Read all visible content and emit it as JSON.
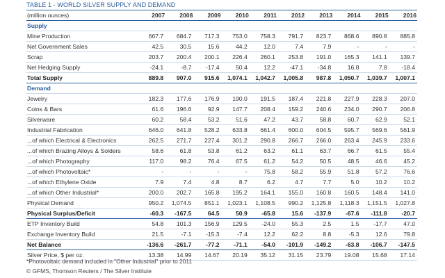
{
  "title": "TABLE 1 - WORLD SILVER SUPPLY AND DEMAND",
  "header": [
    "(million ounces)",
    "2007",
    "2008",
    "2009",
    "2010",
    "2011",
    "2012",
    "2013",
    "2014",
    "2015",
    "2016"
  ],
  "rows": [
    {
      "heading": "Supply"
    },
    {
      "label": "Mine Production",
      "values": [
        "667.7",
        "684.7",
        "717.3",
        "753.0",
        "758.3",
        "791.7",
        "823.7",
        "868.6",
        "890.8",
        "885.8"
      ]
    },
    {
      "label": "Net Government Sales",
      "values": [
        "42.5",
        "30.5",
        "15.6",
        "44.2",
        "12.0",
        "7.4",
        "7.9",
        "-",
        "-",
        "-"
      ]
    },
    {
      "label": "Scrap",
      "values": [
        "203.7",
        "200.4",
        "200.1",
        "226.4",
        "260.1",
        "253.8",
        "191.0",
        "165.3",
        "141.1",
        "139.7"
      ]
    },
    {
      "label": "Net Hedging Supply",
      "values": [
        "-24.1",
        "-8.7",
        "-17.4",
        "50.4",
        "12.2",
        "-47.1",
        "-34.8",
        "16.8",
        "7.8",
        "-18.4"
      ]
    },
    {
      "label": "Total Supply",
      "bold": true,
      "values": [
        "889.8",
        "907.0",
        "915.6",
        "1,074.1",
        "1,042.7",
        "1,005.8",
        "987.8",
        "1,050.7",
        "1,039.7",
        "1,007.1"
      ]
    },
    {
      "heading": "Demand"
    },
    {
      "label": "Jewelry",
      "values": [
        "182.3",
        "177.6",
        "176.9",
        "190.0",
        "191.5",
        "187.4",
        "221.8",
        "227.9",
        "228.3",
        "207.0"
      ]
    },
    {
      "label": "Coins & Bars",
      "values": [
        "61.6",
        "196.6",
        "92.9",
        "147.7",
        "208.4",
        "159.2",
        "240.6",
        "234.0",
        "290.7",
        "206.8"
      ]
    },
    {
      "label": "Silverware",
      "values": [
        "60.2",
        "58.4",
        "53.2",
        "51.6",
        "47.2",
        "43.7",
        "58.8",
        "60.7",
        "62.9",
        "52.1"
      ]
    },
    {
      "label": "Industrial Fabrication",
      "values": [
        "646.0",
        "641.8",
        "528.2",
        "633.8",
        "661.4",
        "600.0",
        "604.5",
        "595.7",
        "569.6",
        "561.9"
      ]
    },
    {
      "label": "...of which Electrical & Electronics",
      "values": [
        "262.5",
        "271.7",
        "227.4",
        "301.2",
        "290.8",
        "266.7",
        "266.0",
        "263.4",
        "245.9",
        "233.6"
      ]
    },
    {
      "label": "...of which Brazing Alloys & Solders",
      "values": [
        "58.6",
        "61.8",
        "53.8",
        "61.2",
        "63.2",
        "61.1",
        "63.7",
        "66.7",
        "61.5",
        "55.4"
      ]
    },
    {
      "label": "...of which Photography",
      "values": [
        "117.0",
        "98.2",
        "76.4",
        "67.5",
        "61.2",
        "54.2",
        "50.5",
        "48.5",
        "46.6",
        "45.2"
      ]
    },
    {
      "label": "...of which Photovoltaic*",
      "values": [
        "-",
        "-",
        "-",
        "-",
        "75.8",
        "58.2",
        "55.9",
        "51.8",
        "57.2",
        "76.6"
      ]
    },
    {
      "label": "...of which Ethylene Oxide",
      "values": [
        "7.9",
        "7.4",
        "4.8",
        "8.7",
        "6.2",
        "4.7",
        "7.7",
        "5.0",
        "10.2",
        "10.2"
      ]
    },
    {
      "label": "...of which Other Industrial*",
      "values": [
        "200.0",
        "202.7",
        "165.8",
        "195.2",
        "164.1",
        "155.0",
        "160.8",
        "160.5",
        "148.4",
        "141.0"
      ]
    },
    {
      "label": "Physical Demand",
      "values": [
        "950.2",
        "1,074.5",
        "851.1",
        "1,023.1",
        "1,108.5",
        "990.2",
        "1,125.8",
        "1,118.3",
        "1,151.5",
        "1,027.8"
      ]
    },
    {
      "label": "Physical Surplus/Deficit",
      "bold": true,
      "values": [
        "-60.3",
        "-167.5",
        "64.5",
        "50.9",
        "-65.8",
        "15.6",
        "-137.9",
        "-67.6",
        "-111.8",
        "-20.7"
      ]
    },
    {
      "label": "ETP Inventory Build",
      "values": [
        "54.8",
        "101.3",
        "156.9",
        "129.5",
        "-24.0",
        "55.3",
        "2.5",
        "1.5",
        "-17.7",
        "47.0"
      ]
    },
    {
      "label": "Exchange Inventory Build",
      "values": [
        "21.5",
        "-7.1",
        "-15.3",
        "-7.4",
        "12.2",
        "62.2",
        "8.8",
        "-5.3",
        "12.6",
        "79.8"
      ]
    },
    {
      "label": "Net Balance",
      "bold": true,
      "values": [
        "-136.6",
        "-261.7",
        "-77.2",
        "-71.1",
        "-54.0",
        "-101.9",
        "-149.2",
        "-63.8",
        "-106.7",
        "-147.5"
      ]
    },
    {
      "label": "Silver Price, $ per oz.",
      "values": [
        "13.38",
        "14.99",
        "14.67",
        "20.19",
        "35.12",
        "31.15",
        "23.79",
        "19.08",
        "15.68",
        "17.14"
      ]
    }
  ],
  "footnotes": [
    "*Photovoltaic demand included in \"Other Industrial\" prior to 2011",
    "© GFMS, Thomson Reuters / The Silver Institute"
  ]
}
